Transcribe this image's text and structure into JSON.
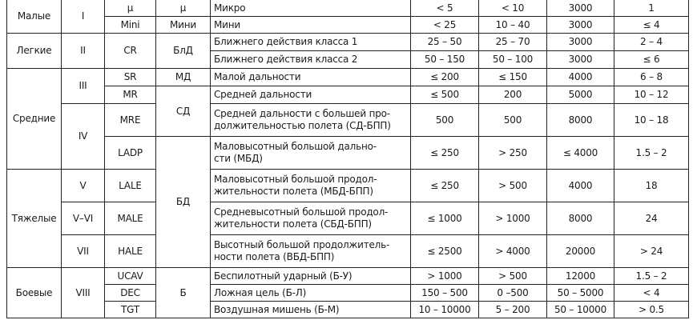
{
  "rows": [
    {
      "group": "Малые",
      "cls": "I",
      "code": "μ",
      "abbr": "μ",
      "name": [
        "Микро"
      ],
      "v": [
        "< 5",
        "< 10",
        "3000",
        "1"
      ]
    },
    {
      "code": "Mini",
      "abbr": "Мини",
      "name": [
        "Мини"
      ],
      "v": [
        "< 25",
        "10 – 40",
        "3000",
        "≤ 4"
      ]
    },
    {
      "group": "Легкие",
      "cls": "II",
      "code": "CR",
      "abbr": "БлД",
      "name": [
        "Ближнего действия класса 1"
      ],
      "v": [
        "25 – 50",
        "25 – 70",
        "3000",
        "2 – 4"
      ]
    },
    {
      "name": [
        "Ближнего действия класса 2"
      ],
      "v": [
        "50 – 150",
        "50 – 100",
        "3000",
        "≤ 6"
      ]
    },
    {
      "group": "Средние",
      "cls": "III",
      "code": "SR",
      "abbr": "МД",
      "name": [
        "Малой дальности"
      ],
      "v": [
        "≤ 200",
        "≤ 150",
        "4000",
        "6 – 8"
      ]
    },
    {
      "code": "MR",
      "abbr": "СД",
      "name": [
        "Средней дальности"
      ],
      "v": [
        "≤ 500",
        "200",
        "5000",
        "10 – 12"
      ]
    },
    {
      "cls": "IV",
      "code": "MRE",
      "name": [
        "Средней дальности с большей про-",
        "должительностью полета (СД-БПП)"
      ],
      "v": [
        "500",
        "500",
        "8000",
        "10 – 18"
      ]
    },
    {
      "code": "LADP",
      "abbr": "БД",
      "name": [
        "Маловысотный большой дально-",
        "сти (МБД)"
      ],
      "v": [
        "≤ 250",
        "> 250",
        "≤ 4000",
        "1.5 – 2"
      ]
    },
    {
      "group": "Тяжелые",
      "cls": "V",
      "code": "LALE",
      "name": [
        "Маловысотный большой продол-",
        "жительности полета (МБД-БПП)"
      ],
      "v": [
        "≤ 250",
        "> 500",
        "4000",
        "18"
      ]
    },
    {
      "cls": "V–VI",
      "code": "MALE",
      "name": [
        "Средневысотный большой продол-",
        "жительности полета (СБД-БПП)"
      ],
      "v": [
        "≤ 1000",
        "> 1000",
        "8000",
        "24"
      ]
    },
    {
      "cls": "VII",
      "code": "HALE",
      "name": [
        "Высотный большой продолжитель-",
        "ности полета (ВБД-БПП)"
      ],
      "v": [
        "≤ 2500",
        "> 4000",
        "20000",
        "> 24"
      ]
    },
    {
      "group": "Боевые",
      "cls": "VIII",
      "code": "UCAV",
      "abbr": "Б",
      "name": [
        "Беспилотный ударный (Б-У)"
      ],
      "v": [
        "> 1000",
        "> 500",
        "12000",
        "1.5 – 2"
      ]
    },
    {
      "code": "DEC",
      "name": [
        "Ложная цель (Б-Л)"
      ],
      "v": [
        "150 – 500",
        "0 –500",
        "50 – 5000",
        "< 4"
      ]
    },
    {
      "code": "TGT",
      "name": [
        "Воздушная мишень (Б-М)"
      ],
      "v": [
        "10 – 10000",
        "5 – 200",
        "50 – 10000",
        "> 0.5"
      ]
    }
  ]
}
